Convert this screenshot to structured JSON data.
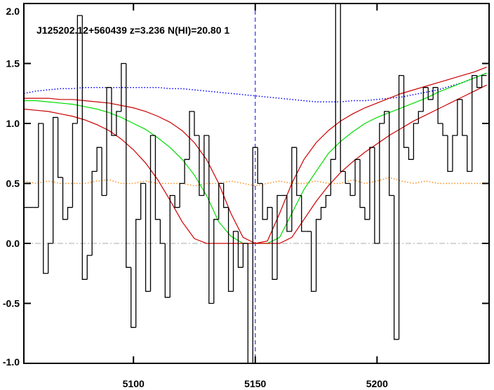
{
  "chart_data": {
    "type": "spectrum",
    "title": "J125202.12+560439 z=3.236 N(HI)=20.80 1",
    "xlim": [
      5055,
      5246
    ],
    "ylim": [
      -1.0,
      2.0
    ],
    "xticks": [
      5100,
      5150,
      5200
    ],
    "yticks": [
      {
        "value": -1.0,
        "label": "-1.0"
      },
      {
        "value": -0.5,
        "label": "-0.5"
      },
      {
        "value": 0.0,
        "label": "0.0"
      },
      {
        "value": 0.5,
        "label": "0.5"
      },
      {
        "value": 1.0,
        "label": "1.0"
      },
      {
        "value": 1.5,
        "label": "1.5"
      },
      {
        "value": 2.0,
        "label": "2.0"
      }
    ],
    "zero_line": 0,
    "center_line": 5150,
    "flux": {
      "color": "#000000",
      "x": [
        5056,
        5058,
        5060,
        5062,
        5064,
        5066,
        5068,
        5070,
        5072,
        5074,
        5076,
        5078,
        5080,
        5082,
        5084,
        5086,
        5088,
        5090,
        5092,
        5094,
        5096,
        5098,
        5100,
        5102,
        5104,
        5106,
        5108,
        5110,
        5112,
        5114,
        5116,
        5118,
        5120,
        5122,
        5124,
        5126,
        5128,
        5130,
        5132,
        5134,
        5136,
        5138,
        5140,
        5142,
        5144,
        5146,
        5148,
        5150,
        5152,
        5154,
        5156,
        5158,
        5160,
        5162,
        5164,
        5166,
        5168,
        5170,
        5172,
        5174,
        5176,
        5178,
        5180,
        5182,
        5184,
        5186,
        5188,
        5190,
        5192,
        5194,
        5196,
        5198,
        5200,
        5202,
        5204,
        5206,
        5208,
        5210,
        5212,
        5214,
        5216,
        5218,
        5220,
        5222,
        5224,
        5226,
        5228,
        5230,
        5232,
        5234,
        5236,
        5238,
        5240,
        5242,
        5244
      ],
      "values": [
        0.3,
        0.3,
        0.3,
        1.0,
        -0.25,
        0.0,
        1.05,
        0.55,
        0.2,
        0.3,
        1.0,
        1.9,
        -0.3,
        -0.1,
        0.6,
        0.8,
        0.4,
        1.3,
        0.9,
        1.1,
        1.5,
        -0.2,
        -0.7,
        0.2,
        0.5,
        -0.4,
        0.9,
        0.2,
        0.0,
        -0.45,
        0.4,
        0.3,
        0.5,
        0.7,
        1.1,
        0.9,
        0.4,
        0.9,
        -0.5,
        0.2,
        0.5,
        0.3,
        -0.4,
        0.1,
        -0.2,
        0.0,
        -1.0,
        0.8,
        0.5,
        0.2,
        0.3,
        -0.3,
        0.4,
        0.4,
        0.1,
        0.8,
        0.4,
        0.1,
        0.1,
        -0.4,
        0.2,
        0.3,
        0.4,
        0.7,
        2.0,
        0.6,
        0.5,
        0.4,
        0.7,
        0.3,
        0.2,
        0.8,
        0.0,
        1.0,
        1.1,
        0.4,
        -0.8,
        1.4,
        0.8,
        0.7,
        1.0,
        1.1,
        1.3,
        1.2,
        1.3,
        1.0,
        0.9,
        0.6,
        0.9,
        1.2,
        0.9,
        0.6,
        1.4,
        1.3,
        1.4
      ]
    },
    "model_x": [
      5055,
      5060,
      5065,
      5070,
      5075,
      5080,
      5085,
      5090,
      5095,
      5100,
      5105,
      5110,
      5115,
      5120,
      5125,
      5130,
      5135,
      5140,
      5145,
      5150,
      5155,
      5160,
      5165,
      5170,
      5175,
      5180,
      5185,
      5190,
      5195,
      5200,
      5205,
      5210,
      5215,
      5220,
      5225,
      5230,
      5235,
      5240,
      5245
    ],
    "curves": [
      {
        "color": "#0000ff",
        "style": "dotted",
        "values": [
          1.25,
          1.27,
          1.28,
          1.29,
          1.29,
          1.3,
          1.3,
          1.3,
          1.3,
          1.3,
          1.3,
          1.3,
          1.29,
          1.29,
          1.28,
          1.27,
          1.26,
          1.25,
          1.24,
          1.23,
          1.22,
          1.21,
          1.2,
          1.19,
          1.18,
          1.18,
          1.18,
          1.19,
          1.19,
          1.2,
          1.21,
          1.22,
          1.24,
          1.26,
          1.28,
          1.31,
          1.34,
          1.38,
          1.42
        ]
      },
      {
        "color": "#ff8c1a",
        "style": "dotted",
        "values": [
          0.52,
          0.5,
          0.52,
          0.5,
          0.5,
          0.5,
          0.52,
          0.53,
          0.5,
          0.5,
          0.52,
          0.5,
          0.5,
          0.5,
          0.48,
          0.5,
          0.5,
          0.52,
          0.5,
          0.48,
          0.5,
          0.52,
          0.5,
          0.5,
          0.52,
          0.5,
          0.5,
          0.53,
          0.5,
          0.52,
          0.55,
          0.52,
          0.5,
          0.52,
          0.5,
          0.5,
          0.5,
          0.5,
          0.5
        ]
      },
      {
        "color": "#00dd00",
        "style": "solid",
        "values": [
          1.19,
          1.19,
          1.18,
          1.17,
          1.16,
          1.14,
          1.12,
          1.09,
          1.05,
          1.0,
          0.95,
          0.88,
          0.8,
          0.7,
          0.57,
          0.4,
          0.18,
          0.06,
          0,
          0,
          0,
          0.05,
          0.25,
          0.45,
          0.6,
          0.75,
          0.85,
          0.93,
          1.0,
          1.05,
          1.09,
          1.13,
          1.17,
          1.21,
          1.26,
          1.3,
          1.34,
          1.38,
          1.42
        ]
      },
      {
        "color": "#cc0000",
        "style": "solid",
        "values": [
          1.21,
          1.21,
          1.21,
          1.2,
          1.2,
          1.19,
          1.18,
          1.17,
          1.15,
          1.13,
          1.1,
          1.06,
          1.01,
          0.94,
          0.84,
          0.7,
          0.5,
          0.25,
          0.05,
          0,
          0.02,
          0.25,
          0.5,
          0.7,
          0.84,
          0.94,
          1.02,
          1.08,
          1.13,
          1.17,
          1.21,
          1.25,
          1.28,
          1.31,
          1.34,
          1.37,
          1.4,
          1.43,
          1.47
        ]
      },
      {
        "color": "#cc0000",
        "style": "solid",
        "values": [
          1.12,
          1.11,
          1.1,
          1.08,
          1.06,
          1.03,
          0.99,
          0.94,
          0.87,
          0.78,
          0.67,
          0.53,
          0.36,
          0.18,
          0.04,
          0,
          0,
          0,
          0,
          0,
          0,
          0,
          0.05,
          0.2,
          0.35,
          0.48,
          0.59,
          0.68,
          0.76,
          0.83,
          0.9,
          0.96,
          1.02,
          1.07,
          1.12,
          1.17,
          1.22,
          1.27,
          1.32
        ]
      }
    ]
  }
}
